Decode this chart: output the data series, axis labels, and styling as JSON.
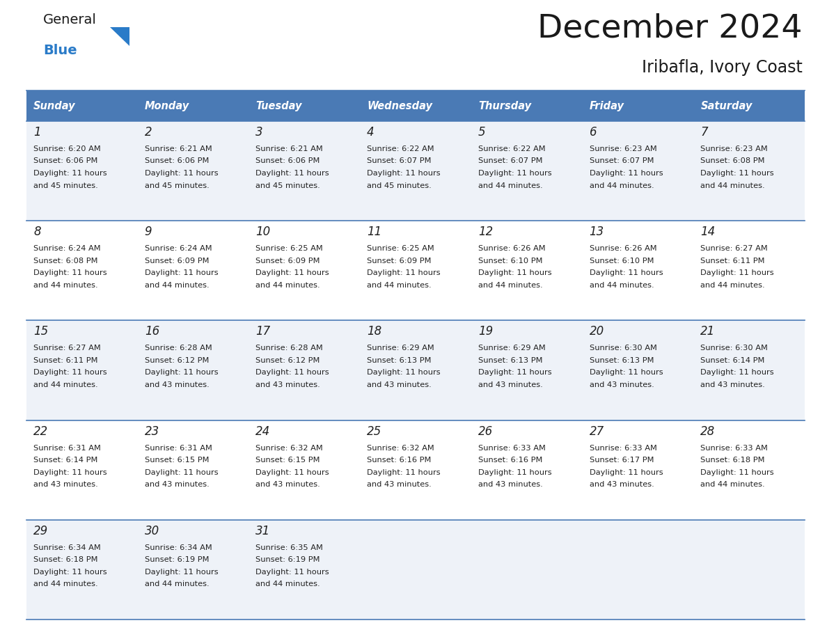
{
  "title": "December 2024",
  "subtitle": "Iribafla, Ivory Coast",
  "header_color": "#4a7ab5",
  "header_text_color": "#ffffff",
  "days_of_week": [
    "Sunday",
    "Monday",
    "Tuesday",
    "Wednesday",
    "Thursday",
    "Friday",
    "Saturday"
  ],
  "border_color": "#4a7ab5",
  "text_color": "#222222",
  "cal_data": [
    [
      {
        "day": "1",
        "sunrise": "6:20 AM",
        "sunset": "6:06 PM",
        "daylight1": "Daylight: 11 hours",
        "daylight2": "and 45 minutes."
      },
      {
        "day": "2",
        "sunrise": "6:21 AM",
        "sunset": "6:06 PM",
        "daylight1": "Daylight: 11 hours",
        "daylight2": "and 45 minutes."
      },
      {
        "day": "3",
        "sunrise": "6:21 AM",
        "sunset": "6:06 PM",
        "daylight1": "Daylight: 11 hours",
        "daylight2": "and 45 minutes."
      },
      {
        "day": "4",
        "sunrise": "6:22 AM",
        "sunset": "6:07 PM",
        "daylight1": "Daylight: 11 hours",
        "daylight2": "and 45 minutes."
      },
      {
        "day": "5",
        "sunrise": "6:22 AM",
        "sunset": "6:07 PM",
        "daylight1": "Daylight: 11 hours",
        "daylight2": "and 44 minutes."
      },
      {
        "day": "6",
        "sunrise": "6:23 AM",
        "sunset": "6:07 PM",
        "daylight1": "Daylight: 11 hours",
        "daylight2": "and 44 minutes."
      },
      {
        "day": "7",
        "sunrise": "6:23 AM",
        "sunset": "6:08 PM",
        "daylight1": "Daylight: 11 hours",
        "daylight2": "and 44 minutes."
      }
    ],
    [
      {
        "day": "8",
        "sunrise": "6:24 AM",
        "sunset": "6:08 PM",
        "daylight1": "Daylight: 11 hours",
        "daylight2": "and 44 minutes."
      },
      {
        "day": "9",
        "sunrise": "6:24 AM",
        "sunset": "6:09 PM",
        "daylight1": "Daylight: 11 hours",
        "daylight2": "and 44 minutes."
      },
      {
        "day": "10",
        "sunrise": "6:25 AM",
        "sunset": "6:09 PM",
        "daylight1": "Daylight: 11 hours",
        "daylight2": "and 44 minutes."
      },
      {
        "day": "11",
        "sunrise": "6:25 AM",
        "sunset": "6:09 PM",
        "daylight1": "Daylight: 11 hours",
        "daylight2": "and 44 minutes."
      },
      {
        "day": "12",
        "sunrise": "6:26 AM",
        "sunset": "6:10 PM",
        "daylight1": "Daylight: 11 hours",
        "daylight2": "and 44 minutes."
      },
      {
        "day": "13",
        "sunrise": "6:26 AM",
        "sunset": "6:10 PM",
        "daylight1": "Daylight: 11 hours",
        "daylight2": "and 44 minutes."
      },
      {
        "day": "14",
        "sunrise": "6:27 AM",
        "sunset": "6:11 PM",
        "daylight1": "Daylight: 11 hours",
        "daylight2": "and 44 minutes."
      }
    ],
    [
      {
        "day": "15",
        "sunrise": "6:27 AM",
        "sunset": "6:11 PM",
        "daylight1": "Daylight: 11 hours",
        "daylight2": "and 44 minutes."
      },
      {
        "day": "16",
        "sunrise": "6:28 AM",
        "sunset": "6:12 PM",
        "daylight1": "Daylight: 11 hours",
        "daylight2": "and 43 minutes."
      },
      {
        "day": "17",
        "sunrise": "6:28 AM",
        "sunset": "6:12 PM",
        "daylight1": "Daylight: 11 hours",
        "daylight2": "and 43 minutes."
      },
      {
        "day": "18",
        "sunrise": "6:29 AM",
        "sunset": "6:13 PM",
        "daylight1": "Daylight: 11 hours",
        "daylight2": "and 43 minutes."
      },
      {
        "day": "19",
        "sunrise": "6:29 AM",
        "sunset": "6:13 PM",
        "daylight1": "Daylight: 11 hours",
        "daylight2": "and 43 minutes."
      },
      {
        "day": "20",
        "sunrise": "6:30 AM",
        "sunset": "6:13 PM",
        "daylight1": "Daylight: 11 hours",
        "daylight2": "and 43 minutes."
      },
      {
        "day": "21",
        "sunrise": "6:30 AM",
        "sunset": "6:14 PM",
        "daylight1": "Daylight: 11 hours",
        "daylight2": "and 43 minutes."
      }
    ],
    [
      {
        "day": "22",
        "sunrise": "6:31 AM",
        "sunset": "6:14 PM",
        "daylight1": "Daylight: 11 hours",
        "daylight2": "and 43 minutes."
      },
      {
        "day": "23",
        "sunrise": "6:31 AM",
        "sunset": "6:15 PM",
        "daylight1": "Daylight: 11 hours",
        "daylight2": "and 43 minutes."
      },
      {
        "day": "24",
        "sunrise": "6:32 AM",
        "sunset": "6:15 PM",
        "daylight1": "Daylight: 11 hours",
        "daylight2": "and 43 minutes."
      },
      {
        "day": "25",
        "sunrise": "6:32 AM",
        "sunset": "6:16 PM",
        "daylight1": "Daylight: 11 hours",
        "daylight2": "and 43 minutes."
      },
      {
        "day": "26",
        "sunrise": "6:33 AM",
        "sunset": "6:16 PM",
        "daylight1": "Daylight: 11 hours",
        "daylight2": "and 43 minutes."
      },
      {
        "day": "27",
        "sunrise": "6:33 AM",
        "sunset": "6:17 PM",
        "daylight1": "Daylight: 11 hours",
        "daylight2": "and 43 minutes."
      },
      {
        "day": "28",
        "sunrise": "6:33 AM",
        "sunset": "6:18 PM",
        "daylight1": "Daylight: 11 hours",
        "daylight2": "and 44 minutes."
      }
    ],
    [
      {
        "day": "29",
        "sunrise": "6:34 AM",
        "sunset": "6:18 PM",
        "daylight1": "Daylight: 11 hours",
        "daylight2": "and 44 minutes."
      },
      {
        "day": "30",
        "sunrise": "6:34 AM",
        "sunset": "6:19 PM",
        "daylight1": "Daylight: 11 hours",
        "daylight2": "and 44 minutes."
      },
      {
        "day": "31",
        "sunrise": "6:35 AM",
        "sunset": "6:19 PM",
        "daylight1": "Daylight: 11 hours",
        "daylight2": "and 44 minutes."
      },
      null,
      null,
      null,
      null
    ]
  ]
}
